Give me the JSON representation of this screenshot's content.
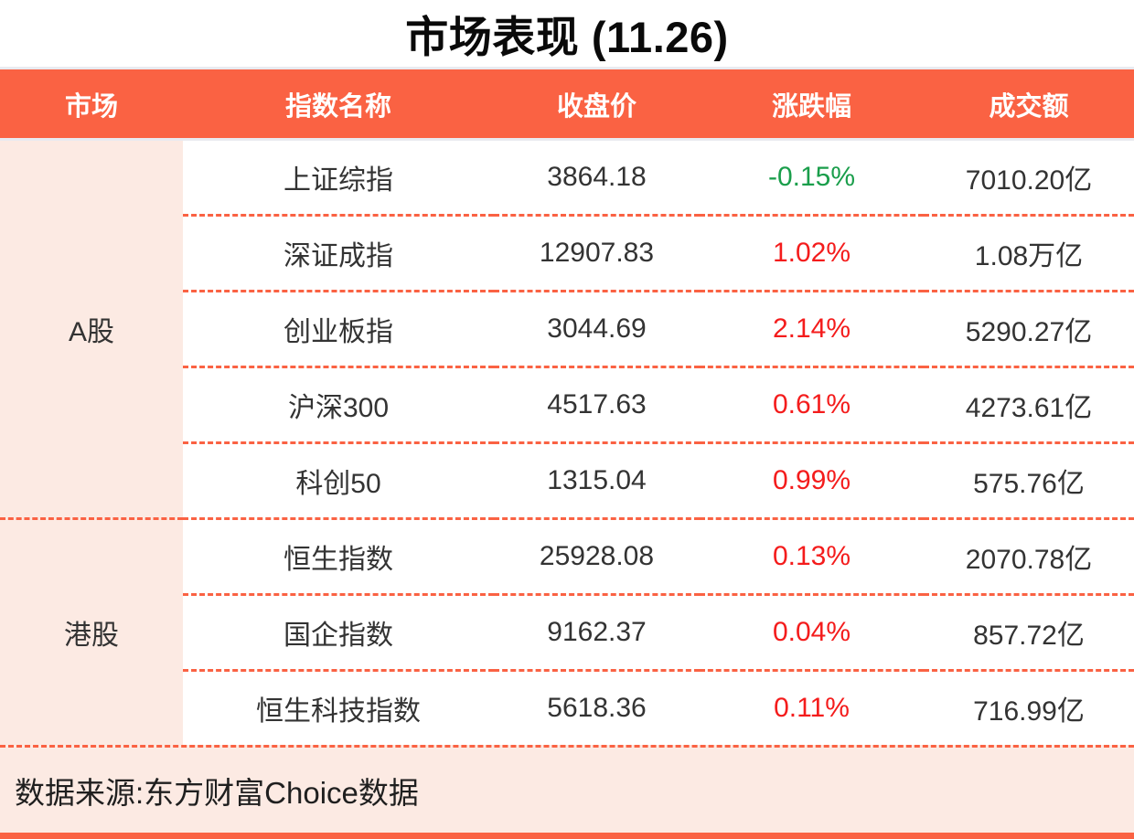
{
  "title": "市场表现 (11.26)",
  "table": {
    "columns": [
      "市场",
      "指数名称",
      "收盘价",
      "涨跌幅",
      "成交额"
    ],
    "groups": [
      {
        "market": "A股",
        "rows": [
          {
            "name": "上证综指",
            "close": "3864.18",
            "change": "-0.15%",
            "direction": "down",
            "turnover": "7010.20亿"
          },
          {
            "name": "深证成指",
            "close": "12907.83",
            "change": "1.02%",
            "direction": "up",
            "turnover": "1.08万亿"
          },
          {
            "name": "创业板指",
            "close": "3044.69",
            "change": "2.14%",
            "direction": "up",
            "turnover": "5290.27亿"
          },
          {
            "name": "沪深300",
            "close": "4517.63",
            "change": "0.61%",
            "direction": "up",
            "turnover": "4273.61亿"
          },
          {
            "name": "科创50",
            "close": "1315.04",
            "change": "0.99%",
            "direction": "up",
            "turnover": "575.76亿"
          }
        ]
      },
      {
        "market": "港股",
        "rows": [
          {
            "name": "恒生指数",
            "close": "25928.08",
            "change": "0.13%",
            "direction": "up",
            "turnover": "2070.78亿"
          },
          {
            "name": "国企指数",
            "close": "9162.37",
            "change": "0.04%",
            "direction": "up",
            "turnover": "857.72亿"
          },
          {
            "name": "恒生科技指数",
            "close": "5618.36",
            "change": "0.11%",
            "direction": "up",
            "turnover": "716.99亿"
          }
        ]
      }
    ]
  },
  "footer": {
    "source": "数据来源:东方财富Choice数据"
  },
  "colors": {
    "accent_orange": "#FA6243",
    "light_pink": "#FCEAE3",
    "positive_red": "#F41C1C",
    "negative_green": "#1A9E4B",
    "header_text": "#FFFFFF",
    "body_text": "#333333"
  },
  "chart_data": {
    "type": "table",
    "title": "市场表现 (11.26)",
    "columns": [
      "市场",
      "指数名称",
      "收盘价",
      "涨跌幅",
      "成交额"
    ],
    "rows": [
      [
        "A股",
        "上证综指",
        "3864.18",
        "-0.15%",
        "7010.20亿"
      ],
      [
        "A股",
        "深证成指",
        "12907.83",
        "1.02%",
        "1.08万亿"
      ],
      [
        "A股",
        "创业板指",
        "3044.69",
        "2.14%",
        "5290.27亿"
      ],
      [
        "A股",
        "沪深300",
        "4517.63",
        "0.61%",
        "4273.61亿"
      ],
      [
        "A股",
        "科创50",
        "1315.04",
        "0.99%",
        "575.76亿"
      ],
      [
        "港股",
        "恒生指数",
        "25928.08",
        "0.13%",
        "2070.78亿"
      ],
      [
        "港股",
        "国企指数",
        "9162.37",
        "0.04%",
        "857.72亿"
      ],
      [
        "港股",
        "恒生科技指数",
        "5618.36",
        "0.11%",
        "716.99亿"
      ]
    ],
    "notes": "数据来源:东方财富Choice数据; 涨跌幅 negative values shown in green, positive in red"
  }
}
